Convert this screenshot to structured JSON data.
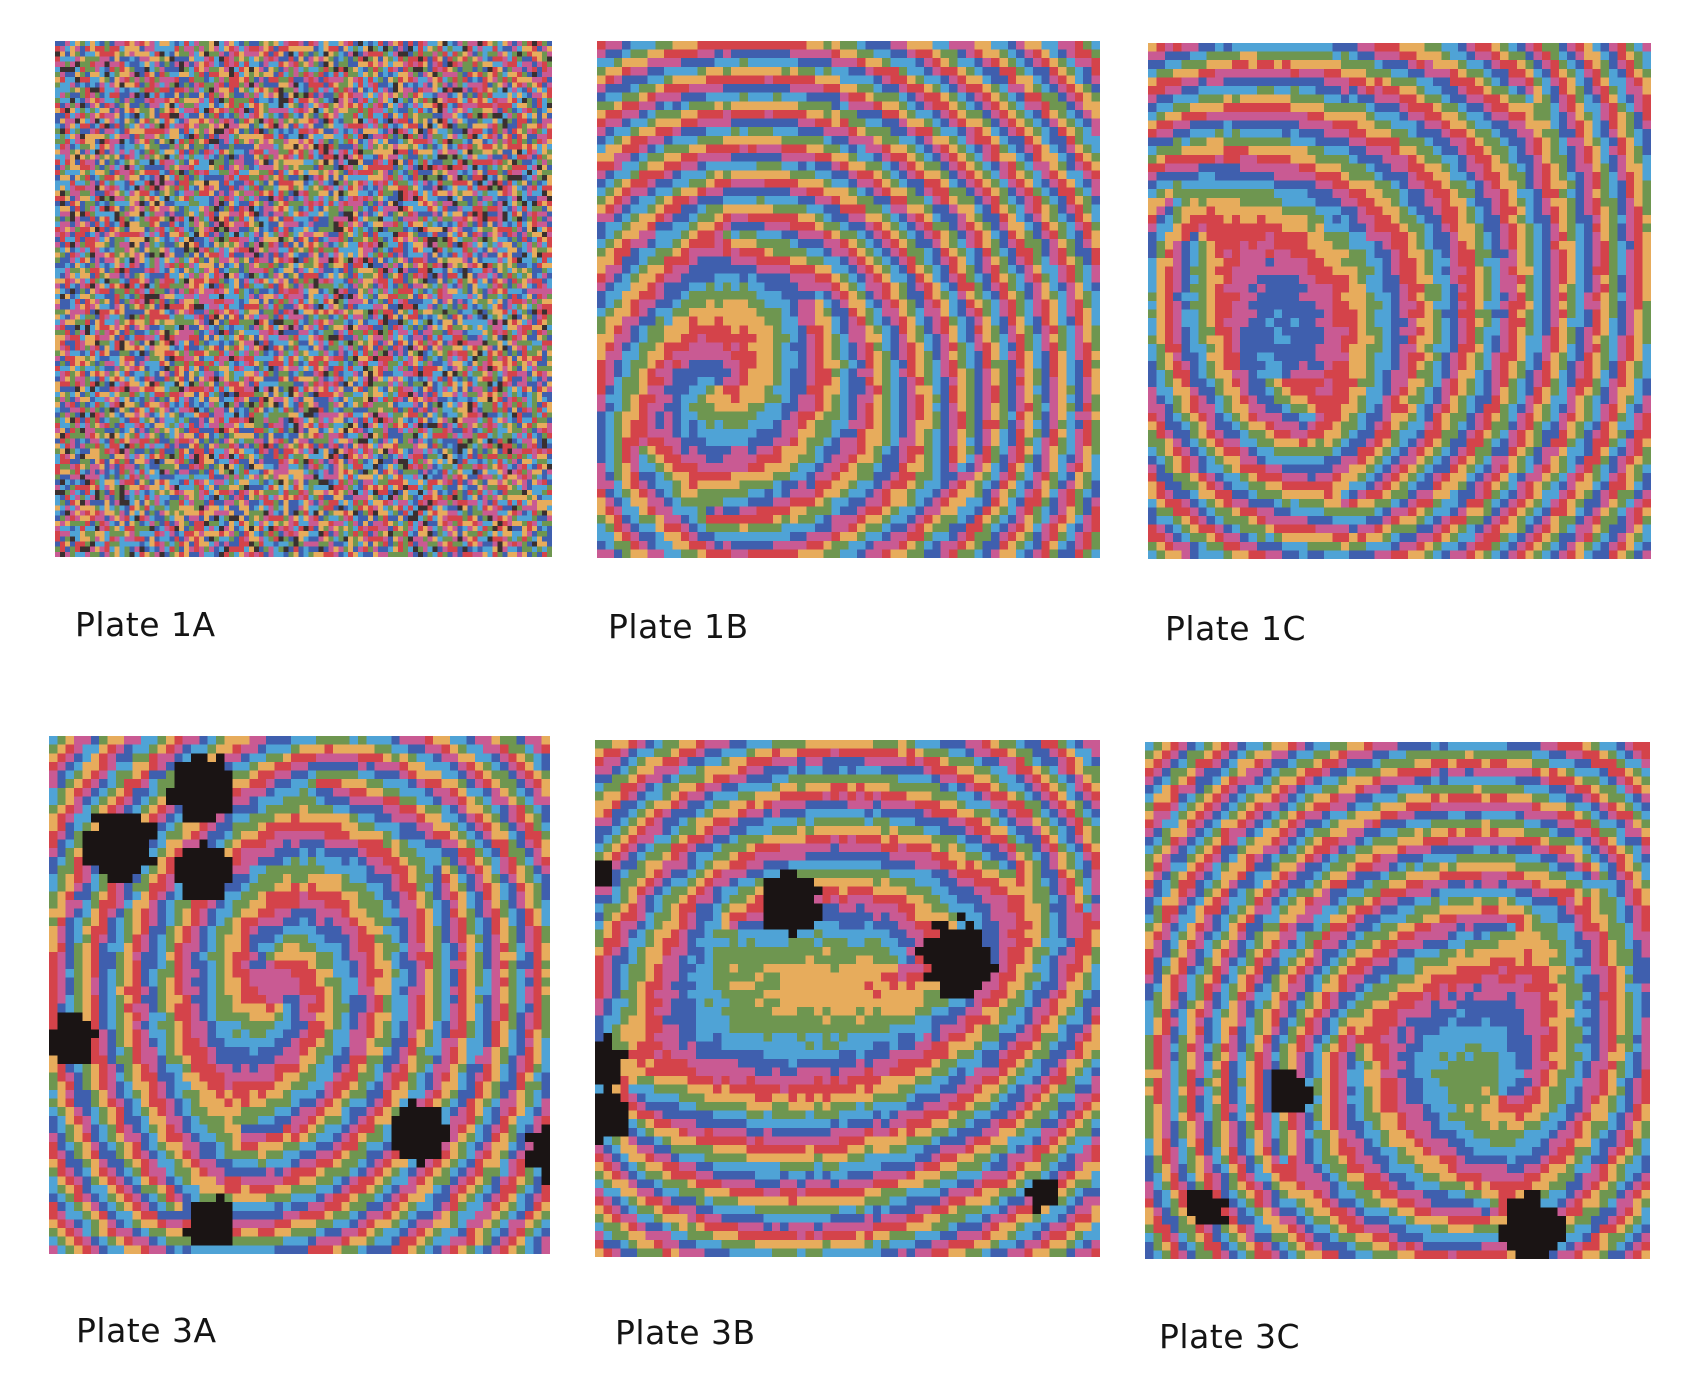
{
  "plates": [
    {
      "id": "1A",
      "caption": "Plate 1A",
      "kind": "noise",
      "seed": 11
    },
    {
      "id": "1B",
      "caption": "Plate 1B",
      "kind": "spirals",
      "seed": 23,
      "black_patches": 0
    },
    {
      "id": "1C",
      "caption": "Plate 1C",
      "kind": "spirals",
      "seed": 37,
      "black_patches": 0
    },
    {
      "id": "3A",
      "caption": "Plate 3A",
      "kind": "spirals",
      "seed": 51,
      "black_patches": 7
    },
    {
      "id": "3B",
      "caption": "Plate 3B",
      "kind": "spirals",
      "seed": 67,
      "black_patches": 6
    },
    {
      "id": "3C",
      "caption": "Plate 3C",
      "kind": "spirals",
      "seed": 83,
      "black_patches": 3
    }
  ],
  "palette": [
    "#4fa3d6",
    "#3f5fae",
    "#c95a93",
    "#d4434a",
    "#e7ac5c",
    "#6e9650"
  ]
}
